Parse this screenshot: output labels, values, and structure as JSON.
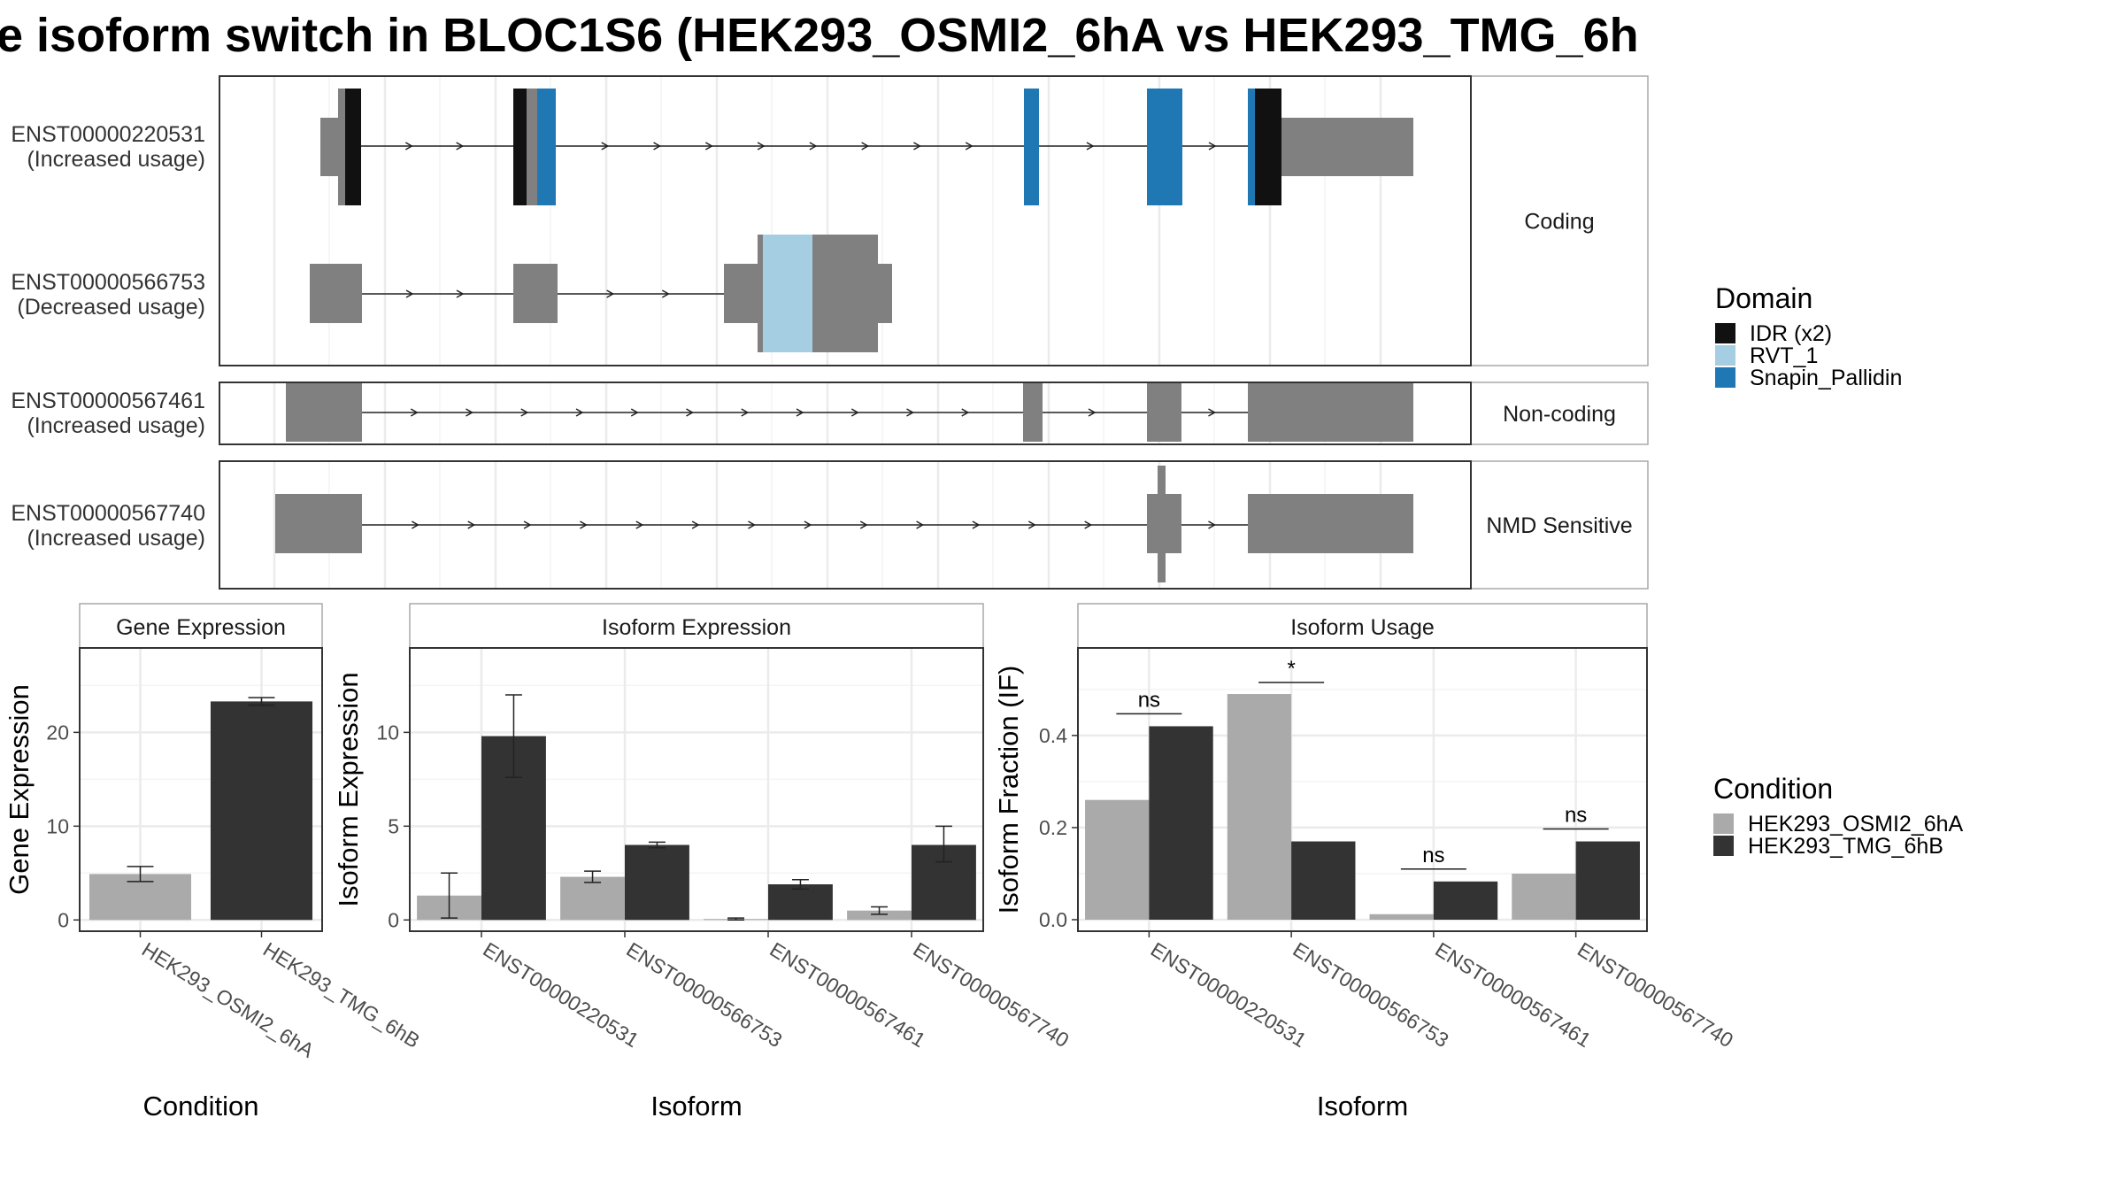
{
  "title": "e isoform switch in BLOC1S6 (HEK293_OSMI2_6hA vs HEK293_TMG_6h",
  "colors": {
    "exon": "#808080",
    "IDR": "#111111",
    "RVT": "#a6cee3",
    "Snapin": "#1f78b4",
    "condA": "#aaaaaa",
    "condB": "#333333"
  },
  "structure": {
    "groups": [
      {
        "name": "Coding"
      },
      {
        "name": "Non-coding"
      },
      {
        "name": "NMD Sensitive"
      }
    ],
    "transcripts": [
      {
        "id": "ENST00000220531",
        "usage": "(Increased usage)"
      },
      {
        "id": "ENST00000566753",
        "usage": "(Decreased usage)"
      },
      {
        "id": "ENST00000567461",
        "usage": "(Increased usage)"
      },
      {
        "id": "ENST00000567740",
        "usage": "(Increased usage)"
      }
    ]
  },
  "legends": {
    "domain": {
      "title": "Domain",
      "items": [
        {
          "label": "IDR (x2)",
          "color": "#111111"
        },
        {
          "label": "RVT_1",
          "color": "#a6cee3"
        },
        {
          "label": "Snapin_Pallidin",
          "color": "#1f78b4"
        }
      ]
    },
    "condition": {
      "title": "Condition",
      "items": [
        {
          "label": "HEK293_OSMI2_6hA",
          "color": "#aaaaaa"
        },
        {
          "label": "HEK293_TMG_6hB",
          "color": "#333333"
        }
      ]
    }
  },
  "chart_data": [
    {
      "type": "bar",
      "title": "Gene Expression",
      "xlabel": "Condition",
      "ylabel": "Gene Expression",
      "categories": [
        "HEK293_OSMI2_6hA",
        "HEK293_TMG_6hB"
      ],
      "values": [
        4.9,
        23.3
      ],
      "errors": [
        [
          4.1,
          5.7
        ],
        [
          22.9,
          23.7
        ]
      ],
      "ylim": [
        -1.2,
        29
      ],
      "yticks": [
        "0",
        "10",
        "20"
      ],
      "grid": true
    },
    {
      "type": "bar",
      "title": "Isoform Expression",
      "xlabel": "Isoform",
      "ylabel": "Isoform Expression",
      "categories": [
        "ENST00000220531",
        "ENST00000566753",
        "ENST00000567461",
        "ENST00000567740"
      ],
      "series": [
        {
          "name": "HEK293_OSMI2_6hA",
          "values": [
            1.3,
            2.3,
            0.05,
            0.5
          ],
          "errors": [
            [
              0.1,
              2.5
            ],
            [
              2.0,
              2.6
            ],
            [
              0.0,
              0.1
            ],
            [
              0.3,
              0.7
            ]
          ]
        },
        {
          "name": "HEK293_TMG_6hB",
          "values": [
            9.8,
            4.0,
            1.9,
            4.0
          ],
          "errors": [
            [
              7.6,
              12.0
            ],
            [
              3.85,
              4.15
            ],
            [
              1.65,
              2.15
            ],
            [
              3.1,
              5.0
            ]
          ]
        }
      ],
      "ylim": [
        -0.6,
        14.5
      ],
      "yticks": [
        "0",
        "5",
        "10"
      ],
      "grid": true
    },
    {
      "type": "bar",
      "title": "Isoform Usage",
      "xlabel": "Isoform",
      "ylabel": "Isoform Fraction (IF)",
      "categories": [
        "ENST00000220531",
        "ENST00000566753",
        "ENST00000567461",
        "ENST00000567740"
      ],
      "series": [
        {
          "name": "HEK293_OSMI2_6hA",
          "values": [
            0.26,
            0.49,
            0.012,
            0.1
          ]
        },
        {
          "name": "HEK293_TMG_6hB",
          "values": [
            0.42,
            0.17,
            0.083,
            0.17
          ]
        }
      ],
      "significance": [
        "ns",
        "*",
        "ns",
        "ns"
      ],
      "sig_bar_level": [
        0.447,
        0.515,
        0.11,
        0.197
      ],
      "ylim": [
        -0.025,
        0.59
      ],
      "yticks": [
        "0.0",
        "0.2",
        "0.4"
      ],
      "grid": true
    }
  ]
}
